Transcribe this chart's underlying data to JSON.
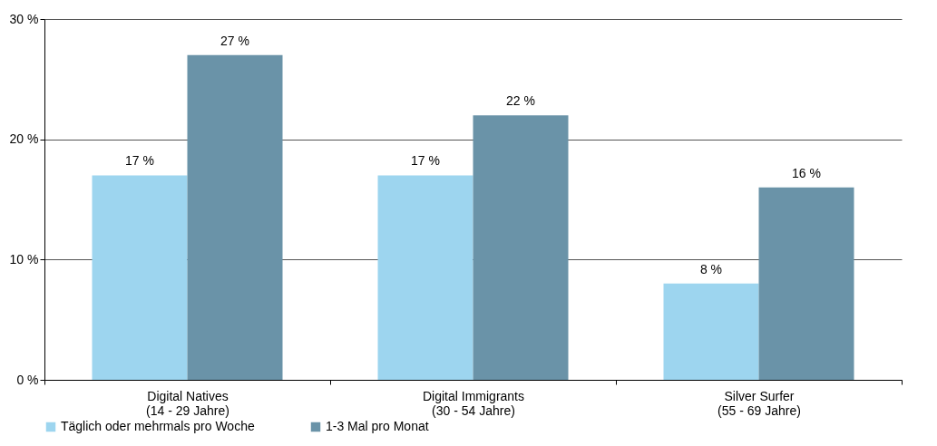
{
  "chart_data": {
    "type": "bar",
    "categories": [
      "Digital Natives\n(14 - 29 Jahre)",
      "Digital Immigrants\n(30 - 54 Jahre)",
      "Silver Surfer\n(55 - 69 Jahre)"
    ],
    "series": [
      {
        "name": "Täglich oder mehrmals pro Woche",
        "color": "#9dd5ef",
        "values": [
          17,
          17,
          8
        ],
        "value_labels": [
          "17 %",
          "17 %",
          "8 %"
        ]
      },
      {
        "name": "1-3 Mal pro Monat",
        "color": "#6a93a8",
        "values": [
          27,
          22,
          16
        ],
        "value_labels": [
          "27 %",
          "22 %",
          "16 %"
        ]
      }
    ],
    "ylim": [
      0,
      30
    ],
    "yticks": [
      {
        "value": 0,
        "label": "0 %"
      },
      {
        "value": 10,
        "label": "10 %"
      },
      {
        "value": 20,
        "label": "20 %"
      },
      {
        "value": 30,
        "label": "30 %"
      }
    ],
    "grid": "y",
    "legend": "bottom left"
  }
}
